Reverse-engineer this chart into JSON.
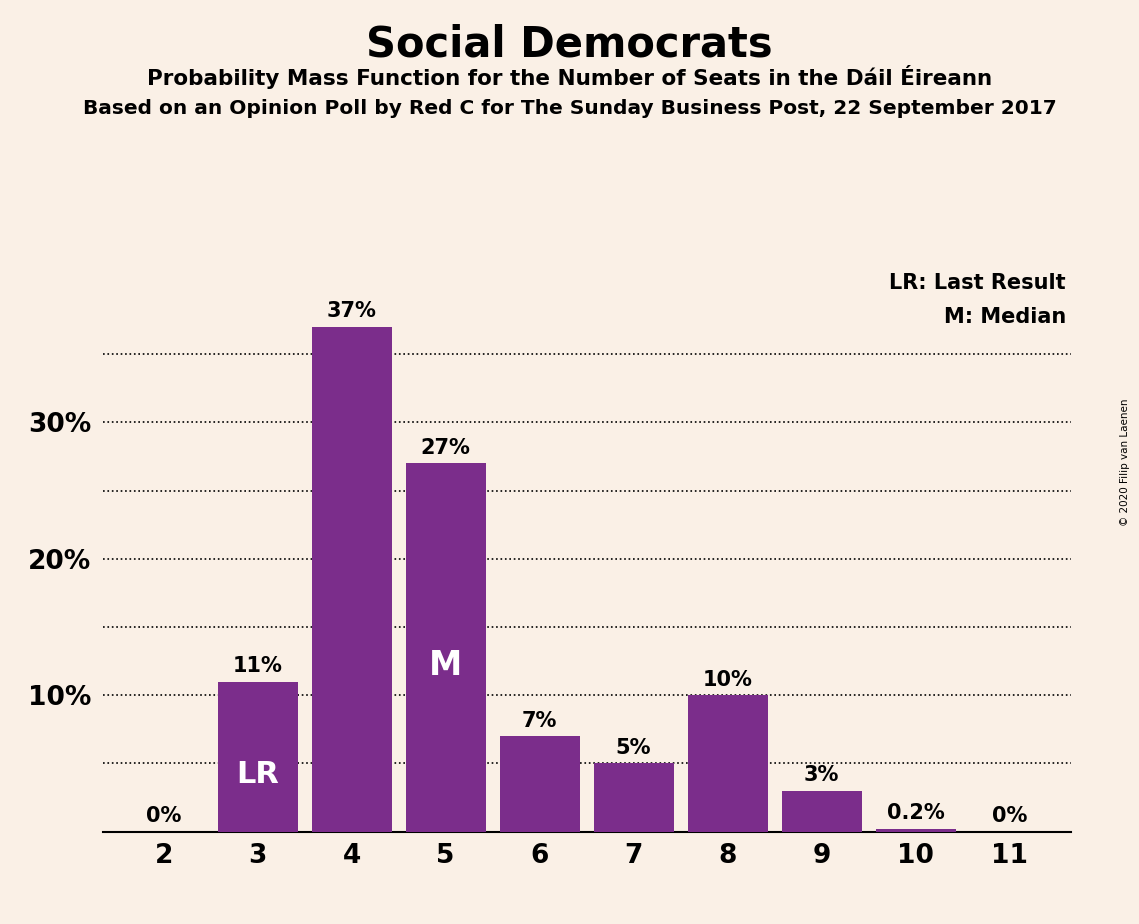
{
  "title": "Social Democrats",
  "subtitle1": "Probability Mass Function for the Number of Seats in the Dáil Éireann",
  "subtitle2": "Based on an Opinion Poll by Red C for The Sunday Business Post, 22 September 2017",
  "copyright": "© 2020 Filip van Laenen",
  "categories": [
    2,
    3,
    4,
    5,
    6,
    7,
    8,
    9,
    10,
    11
  ],
  "values": [
    0.0,
    11.0,
    37.0,
    27.0,
    7.0,
    5.0,
    10.0,
    3.0,
    0.2,
    0.0
  ],
  "labels": [
    "0%",
    "11%",
    "37%",
    "27%",
    "7%",
    "5%",
    "10%",
    "3%",
    "0.2%",
    "0%"
  ],
  "bar_color": "#7B2D8B",
  "background_color": "#FAF0E6",
  "ytick_positions": [
    10,
    20,
    30
  ],
  "ytick_labels": [
    "10%",
    "20%",
    "30%"
  ],
  "ylim": [
    0,
    42
  ],
  "legend_lr": "LR: Last Result",
  "legend_m": "M: Median",
  "label_lr": "LR",
  "label_m": "M",
  "lr_bar_idx": 1,
  "m_bar_idx": 3,
  "grid_yticks": [
    5,
    10,
    15,
    20,
    25,
    30,
    35
  ]
}
